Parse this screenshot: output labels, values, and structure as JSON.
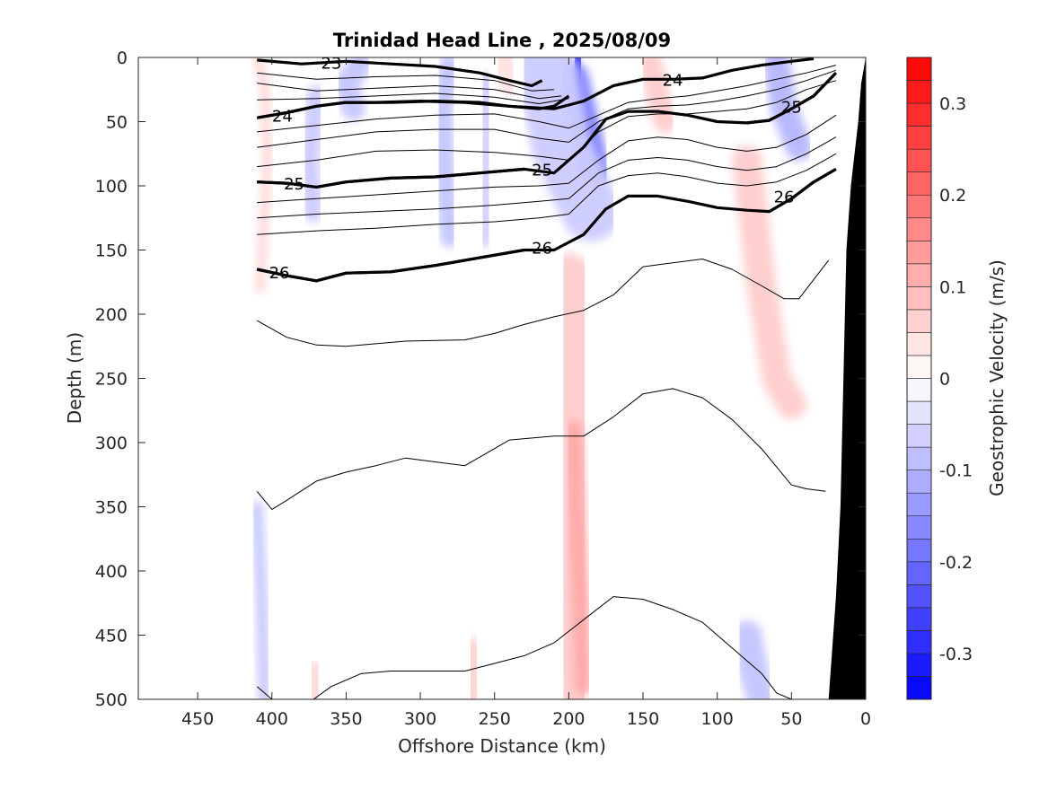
{
  "chart_data": {
    "type": "contour",
    "title": "Trinidad Head Line , 2025/08/09",
    "xlabel": "Offshore Distance (km)",
    "ylabel": "Depth (m)",
    "xlim": [
      490,
      0
    ],
    "ylim": [
      0,
      500
    ],
    "x_reversed": true,
    "y_reversed": true,
    "xticks": [
      "450",
      "400",
      "350",
      "300",
      "250",
      "200",
      "150",
      "100",
      "50",
      "0"
    ],
    "yticks": [
      "0",
      "50",
      "100",
      "150",
      "200",
      "250",
      "300",
      "350",
      "400",
      "450",
      "500"
    ],
    "colorbar": {
      "label": "Geostrophic Velocity (m/s)",
      "range": [
        -0.35,
        0.35
      ],
      "ticks": [
        "0.3",
        "0.2",
        "0.1",
        "0",
        "-0.1",
        "-0.2",
        "-0.3"
      ],
      "low_color": "#0000ff",
      "mid_color": "#ffffff",
      "high_color": "#ff0000",
      "levels": 28
    },
    "velocity_patches": [
      {
        "x": [
          410,
          405,
          403,
          408
        ],
        "y": [
          0,
          20,
          80,
          180
        ],
        "v": 0.06,
        "w": 6
      },
      {
        "x": [
          340,
          350,
          345
        ],
        "y": [
          5,
          20,
          40
        ],
        "v": -0.08,
        "w": 16
      },
      {
        "x": [
          370,
          375,
          372
        ],
        "y": [
          30,
          80,
          120
        ],
        "v": -0.07,
        "w": 14
      },
      {
        "x": [
          280,
          285,
          283,
          280
        ],
        "y": [
          5,
          40,
          100,
          140
        ],
        "v": -0.08,
        "w": 14
      },
      {
        "x": [
          255,
          255,
          257
        ],
        "y": [
          20,
          80,
          140
        ],
        "v": -0.06,
        "w": 14
      },
      {
        "x": [
          195,
          195,
          193
        ],
        "y": [
          0,
          30,
          55
        ],
        "v": -0.32,
        "w": 12
      },
      {
        "x": [
          197,
          190,
          182
        ],
        "y": [
          15,
          50,
          90
        ],
        "v": -0.18,
        "w": 20
      },
      {
        "x": [
          215,
          205,
          185
        ],
        "y": [
          10,
          70,
          120
        ],
        "v": -0.07,
        "w": 40
      },
      {
        "x": [
          245,
          240
        ],
        "y": [
          0,
          20
        ],
        "v": 0.04,
        "w": 16
      },
      {
        "x": [
          145,
          140,
          135
        ],
        "y": [
          5,
          30,
          50
        ],
        "v": 0.07,
        "w": 16
      },
      {
        "x": [
          60,
          55,
          45
        ],
        "y": [
          5,
          40,
          70
        ],
        "v": -0.1,
        "w": 18
      },
      {
        "x": [
          80,
          70,
          60,
          50
        ],
        "y": [
          80,
          180,
          250,
          270
        ],
        "v": 0.07,
        "w": 20
      },
      {
        "x": [
          200,
          200,
          197,
          195,
          193
        ],
        "y": [
          170,
          250,
          350,
          450,
          500
        ],
        "v": 0.07,
        "w": 30
      },
      {
        "x": [
          197,
          195,
          192,
          190
        ],
        "y": [
          290,
          350,
          420,
          490
        ],
        "v": 0.12,
        "w": 12
      },
      {
        "x": [
          410,
          407,
          405
        ],
        "y": [
          350,
          420,
          500
        ],
        "v": -0.08,
        "w": 8
      },
      {
        "x": [
          265,
          263
        ],
        "y": [
          460,
          500
        ],
        "v": 0.06,
        "w": 14
      },
      {
        "x": [
          372,
          370
        ],
        "y": [
          480,
          500
        ],
        "v": 0.05,
        "w": 18
      },
      {
        "x": [
          80,
          75,
          70
        ],
        "y": [
          450,
          480,
          500
        ],
        "v": -0.08,
        "w": 20
      }
    ],
    "isopycnals": [
      {
        "value": 23,
        "major": true,
        "x": [
          410,
          380,
          350,
          320,
          290,
          260,
          240,
          225,
          218
        ],
        "y": [
          2,
          5,
          3,
          5,
          7,
          12,
          18,
          22,
          18
        ],
        "label": {
          "x": 360,
          "y": 4
        }
      },
      {
        "value": 24,
        "major": true,
        "x": [
          410,
          390,
          370,
          350,
          330,
          300,
          270,
          240,
          210,
          190,
          170,
          150,
          130,
          110,
          90,
          70,
          50,
          35
        ],
        "y": [
          47,
          43,
          38,
          35,
          35,
          34,
          35,
          38,
          40,
          34,
          22,
          17,
          17,
          16,
          10,
          6,
          3,
          1
        ],
        "label": {
          "x": 130,
          "y": 17
        }
      },
      {
        "value": 24,
        "major": true,
        "x": [
          410,
          390,
          370,
          350,
          320,
          290,
          260,
          240,
          220,
          210,
          200
        ],
        "y": [
          47,
          43,
          38,
          35,
          35,
          34,
          35,
          38,
          40,
          38,
          30
        ],
        "label": {
          "x": 393,
          "y": 45
        }
      },
      {
        "value": 25,
        "major": true,
        "x": [
          410,
          390,
          370,
          350,
          320,
          290,
          260,
          230,
          210,
          190,
          175,
          160,
          140,
          120,
          100,
          80,
          65,
          50,
          35,
          20
        ],
        "y": [
          97,
          98,
          101,
          97,
          94,
          93,
          90,
          87,
          90,
          70,
          48,
          42,
          42,
          45,
          50,
          51,
          49,
          40,
          30,
          12
        ],
        "label": {
          "x": 218,
          "y": 87
        }
      },
      {
        "value": 25,
        "major": true,
        "x": [
          410,
          390,
          370,
          350,
          320,
          290,
          260,
          230
        ],
        "y": [
          97,
          98,
          101,
          97,
          94,
          93,
          90,
          87
        ],
        "label": {
          "x": 385,
          "y": 98
        }
      },
      {
        "value": 26,
        "major": true,
        "x": [
          410,
          390,
          370,
          350,
          320,
          290,
          260,
          230,
          210,
          190,
          175,
          160,
          140,
          120,
          100,
          80,
          65,
          50,
          35,
          20
        ],
        "y": [
          165,
          170,
          174,
          168,
          167,
          162,
          156,
          150,
          150,
          138,
          118,
          108,
          108,
          112,
          117,
          119,
          120,
          110,
          97,
          87
        ],
        "label": {
          "x": 218,
          "y": 148
        }
      },
      {
        "value": 26,
        "major": true,
        "x": [
          410,
          390,
          370,
          350,
          320,
          290,
          260,
          230
        ],
        "y": [
          165,
          170,
          174,
          168,
          167,
          162,
          156,
          150
        ],
        "label": {
          "x": 395,
          "y": 167
        }
      },
      {
        "value": 26,
        "major": true,
        "x": [
          65,
          50,
          35,
          20
        ],
        "y": [
          120,
          110,
          97,
          87
        ],
        "label": {
          "x": 55,
          "y": 108
        }
      },
      {
        "value": 25,
        "major": true,
        "x": [
          80,
          65,
          50,
          35,
          20
        ],
        "y": [
          51,
          49,
          40,
          30,
          12
        ],
        "label": {
          "x": 50,
          "y": 38
        }
      },
      {
        "value": 23.25,
        "major": false,
        "x": [
          410,
          370,
          330,
          290,
          250,
          225,
          210
        ],
        "y": [
          12,
          17,
          15,
          14,
          18,
          26,
          25
        ]
      },
      {
        "value": 23.5,
        "major": false,
        "x": [
          410,
          370,
          330,
          290,
          250,
          220,
          205
        ],
        "y": [
          20,
          26,
          24,
          22,
          25,
          32,
          30
        ]
      },
      {
        "value": 23.75,
        "major": false,
        "x": [
          410,
          370,
          330,
          290,
          250,
          220,
          200
        ],
        "y": [
          33,
          32,
          30,
          28,
          31,
          36,
          32
        ]
      },
      {
        "value": 24.25,
        "major": false,
        "x": [
          410,
          370,
          330,
          290,
          250,
          220,
          200,
          180,
          160,
          140,
          120,
          100,
          80,
          60,
          40,
          20
        ],
        "y": [
          58,
          53,
          48,
          45,
          44,
          50,
          55,
          45,
          35,
          32,
          30,
          26,
          22,
          17,
          12,
          6
        ]
      },
      {
        "value": 24.5,
        "major": false,
        "x": [
          410,
          370,
          330,
          290,
          250,
          220,
          200,
          180,
          160,
          140,
          120,
          100,
          80,
          60,
          40,
          20
        ],
        "y": [
          70,
          64,
          58,
          56,
          56,
          63,
          66,
          50,
          40,
          38,
          37,
          34,
          30,
          25,
          18,
          10
        ]
      },
      {
        "value": 24.75,
        "major": false,
        "x": [
          410,
          370,
          330,
          290,
          250,
          220,
          200,
          180,
          160,
          140,
          120,
          100,
          80,
          60,
          40,
          20
        ],
        "y": [
          85,
          80,
          73,
          72,
          74,
          77,
          80,
          58,
          46,
          44,
          44,
          42,
          40,
          35,
          25,
          18
        ]
      },
      {
        "value": 25.25,
        "major": false,
        "x": [
          410,
          370,
          330,
          290,
          250,
          220,
          200,
          180,
          160,
          140,
          120,
          100,
          80,
          60,
          40,
          20
        ],
        "y": [
          113,
          110,
          107,
          104,
          101,
          100,
          98,
          80,
          65,
          62,
          64,
          70,
          73,
          70,
          60,
          45
        ]
      },
      {
        "value": 25.5,
        "major": false,
        "x": [
          410,
          370,
          330,
          290,
          250,
          220,
          200,
          180,
          160,
          140,
          120,
          100,
          80,
          60,
          40,
          20
        ],
        "y": [
          125,
          122,
          120,
          118,
          115,
          112,
          110,
          90,
          80,
          78,
          80,
          85,
          88,
          85,
          75,
          62
        ]
      },
      {
        "value": 25.75,
        "major": false,
        "x": [
          410,
          370,
          330,
          290,
          250,
          220,
          200,
          180,
          160,
          140,
          120,
          100,
          80,
          60,
          40,
          20
        ],
        "y": [
          138,
          135,
          133,
          130,
          128,
          125,
          122,
          100,
          92,
          90,
          93,
          98,
          100,
          97,
          88,
          75
        ]
      },
      {
        "value": 26.25,
        "major": false,
        "x": [
          410,
          390,
          370,
          350,
          310,
          270,
          250,
          230,
          210,
          190,
          170,
          150,
          130,
          110,
          90,
          70,
          55,
          45,
          25
        ],
        "y": [
          205,
          218,
          224,
          225,
          221,
          220,
          215,
          208,
          202,
          197,
          185,
          163,
          160,
          157,
          165,
          178,
          188,
          188,
          158
        ]
      },
      {
        "value": 26.5,
        "major": false,
        "x": [
          410,
          400,
          390,
          370,
          350,
          330,
          310,
          290,
          270,
          255,
          240,
          210,
          190,
          170,
          150,
          130,
          110,
          90,
          70,
          50,
          40,
          27
        ],
        "y": [
          338,
          352,
          345,
          330,
          323,
          318,
          312,
          315,
          318,
          308,
          298,
          295,
          295,
          280,
          262,
          258,
          265,
          282,
          305,
          333,
          336,
          338
        ]
      },
      {
        "value": 26.75,
        "major": false,
        "x": [
          372,
          360,
          340,
          320,
          300,
          270,
          250,
          230,
          210,
          190,
          170,
          150,
          130,
          110,
          90,
          70,
          60,
          50
        ],
        "y": [
          500,
          490,
          480,
          478,
          478,
          478,
          472,
          466,
          456,
          438,
          420,
          422,
          430,
          440,
          460,
          480,
          495,
          500
        ]
      },
      {
        "value": 26.8,
        "major": false,
        "x": [
          410,
          400
        ],
        "y": [
          490,
          500
        ]
      }
    ],
    "bottom_topography": {
      "x": [
        0,
        3,
        5,
        7,
        10,
        13,
        15,
        17,
        20,
        25,
        0
      ],
      "y": [
        0,
        20,
        50,
        70,
        100,
        150,
        250,
        350,
        420,
        500,
        500
      ],
      "color": "#000000"
    }
  }
}
